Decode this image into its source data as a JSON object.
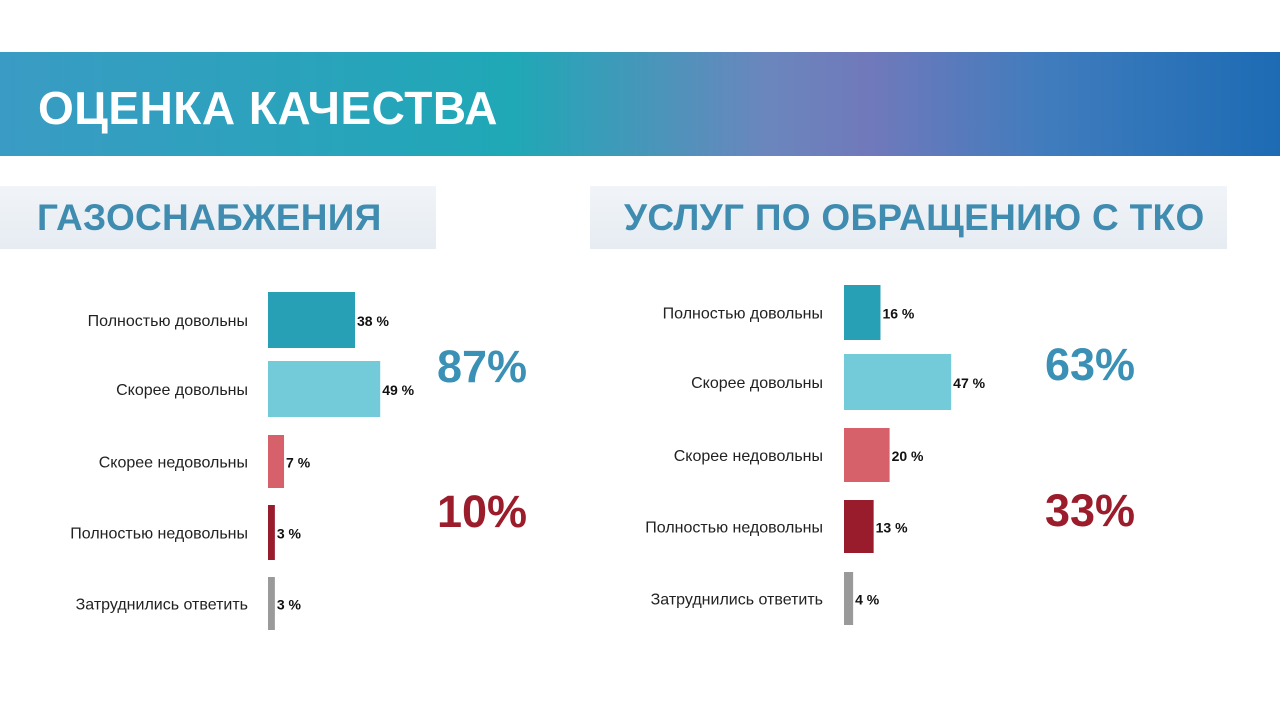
{
  "header": {
    "title": "ОЦЕНКА КАЧЕСТВА"
  },
  "colors": {
    "fully_satisfied": "#27a0b5",
    "rather_satisfied": "#73cad9",
    "rather_dissatisfied": "#d6616b",
    "fully_dissatisfied": "#981c2c",
    "undecided": "#9a9a9a",
    "positive_total": "#3a90b5",
    "negative_total": "#9b1c2b"
  },
  "chart_data": [
    {
      "type": "bar",
      "orientation": "horizontal",
      "title": "ГАЗОСНАБЖЕНИЯ",
      "categories": [
        "Полностью довольны",
        "Скорее довольны",
        "Скорее недовольны",
        "Полностью недовольны",
        "Затруднились ответить"
      ],
      "values": [
        38,
        49,
        7,
        3,
        3
      ],
      "value_labels": [
        "38 %",
        "49 %",
        "7 %",
        "3 %",
        "3 %"
      ],
      "unit": "%",
      "xlim": [
        0,
        100
      ],
      "grid": false,
      "aggregates": [
        {
          "text": "87%",
          "value": 87,
          "color_key": "positive_total"
        },
        {
          "text": "10%",
          "value": 10,
          "color_key": "negative_total"
        }
      ]
    },
    {
      "type": "bar",
      "orientation": "horizontal",
      "title": "УСЛУГ ПО ОБРАЩЕНИЮ С ТКО",
      "categories": [
        "Полностью довольны",
        "Скорее довольны",
        "Скорее недовольны",
        "Полностью недовольны",
        "Затруднились ответить"
      ],
      "values": [
        16,
        47,
        20,
        13,
        4
      ],
      "value_labels": [
        "16 %",
        "47 %",
        "20 %",
        "13 %",
        "4 %"
      ],
      "unit": "%",
      "xlim": [
        0,
        100
      ],
      "grid": false,
      "aggregates": [
        {
          "text": "63%",
          "value": 63,
          "color_key": "positive_total"
        },
        {
          "text": "33%",
          "value": 33,
          "color_key": "negative_total"
        }
      ]
    }
  ]
}
